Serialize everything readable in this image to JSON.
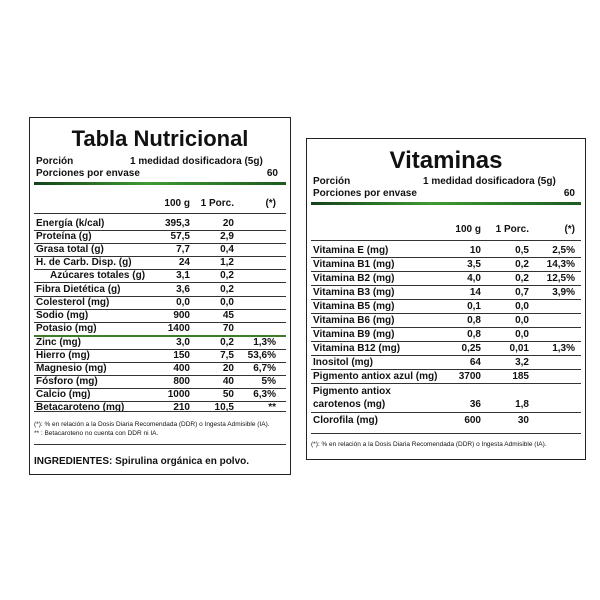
{
  "nutrition": {
    "title": "Tabla Nutricional",
    "porcion_label": "Porción",
    "porcion_value": "1 medidad dosificadora (5g)",
    "porciones_label": "Porciones por envase",
    "porciones_value": "60",
    "col_100g": "100 g",
    "col_porc": "1 Porc.",
    "col_dd": "(*)",
    "rows": [
      {
        "label": "Energía (k/cal)",
        "g100": "395,3",
        "porc": "20",
        "dd": ""
      },
      {
        "label": "Proteína (g)",
        "g100": "57,5",
        "porc": "2,9",
        "dd": ""
      },
      {
        "label": "Grasa total (g)",
        "g100": "7,7",
        "porc": "0,4",
        "dd": ""
      },
      {
        "label": "H. de Carb. Disp. (g)",
        "g100": "24",
        "porc": "1,2",
        "dd": ""
      },
      {
        "label": "Azúcares totales (g)",
        "g100": "3,1",
        "porc": "0,2",
        "dd": ""
      },
      {
        "label": "Fibra Dietética (g)",
        "g100": "3,6",
        "porc": "0,2",
        "dd": ""
      },
      {
        "label": "Colesterol (mg)",
        "g100": "0,0",
        "porc": "0,0",
        "dd": ""
      },
      {
        "label": "Sodio (mg)",
        "g100": "900",
        "porc": "45",
        "dd": ""
      },
      {
        "label": "Potasio (mg)",
        "g100": "1400",
        "porc": "70",
        "dd": ""
      },
      {
        "label": "Zinc (mg)",
        "g100": "3,0",
        "porc": "0,2",
        "dd": "1,3%"
      },
      {
        "label": "Hierro (mg)",
        "g100": "150",
        "porc": "7,5",
        "dd": "53,6%"
      },
      {
        "label": "Magnesio (mg)",
        "g100": "400",
        "porc": "20",
        "dd": "6,7%"
      },
      {
        "label": "Fósforo (mg)",
        "g100": "800",
        "porc": "40",
        "dd": "5%"
      },
      {
        "label": "Calcio (mg)",
        "g100": "1000",
        "porc": "50",
        "dd": "6,3%"
      },
      {
        "label": "Betacaroteno (mg)",
        "g100": "210",
        "porc": "10,5",
        "dd": "**"
      }
    ],
    "foot1": "(*): % en relación a la Dosis Diaria Recomendada (DDR) o Ingesta Admisible (IA).",
    "foot2": "** : Betacaroteno no cuenta con DDR ni IA.",
    "ingredients": "INGREDIENTES: Spirulina orgánica en polvo."
  },
  "vitamins": {
    "title": "Vitaminas",
    "porcion_label": "Porción",
    "porcion_value": "1 medidad dosificadora (5g)",
    "porciones_label": "Porciones por envase",
    "porciones_value": "60",
    "col_100g": "100 g",
    "col_porc": "1 Porc.",
    "col_dd": "(*)",
    "rows": [
      {
        "label": "Vitamina E (mg)",
        "g100": "10",
        "porc": "0,5",
        "dd": "2,5%"
      },
      {
        "label": "Vitamina B1 (mg)",
        "g100": "3,5",
        "porc": "0,2",
        "dd": "14,3%"
      },
      {
        "label": "Vitamina B2 (mg)",
        "g100": "4,0",
        "porc": "0,2",
        "dd": "12,5%"
      },
      {
        "label": "Vitamina B3 (mg)",
        "g100": "14",
        "porc": "0,7",
        "dd": "3,9%"
      },
      {
        "label": "Vitamina B5 (mg)",
        "g100": "0,1",
        "porc": "0,0",
        "dd": ""
      },
      {
        "label": "Vitamina B6 (mg)",
        "g100": "0,8",
        "porc": "0,0",
        "dd": ""
      },
      {
        "label": "Vitamina B9 (mg)",
        "g100": "0,8",
        "porc": "0,0",
        "dd": ""
      },
      {
        "label": "Vitamina B12 (mg)",
        "g100": "0,25",
        "porc": "0,01",
        "dd": "1,3%"
      },
      {
        "label": "Inositol (mg)",
        "g100": "64",
        "porc": "3,2",
        "dd": ""
      },
      {
        "label": "Pigmento antiox azul (mg)",
        "g100": "3700",
        "porc": "185",
        "dd": ""
      },
      {
        "label": "Pigmento antiox",
        "label2": "carotenos (mg)",
        "g100": "36",
        "porc": "1,8",
        "dd": ""
      },
      {
        "label": "Clorofila (mg)",
        "g100": "600",
        "porc": "30",
        "dd": ""
      }
    ],
    "foot1": "(*): % en relación a la Dosis Diaria Recomendada (DDR) o Ingesta Admisible (IA)."
  }
}
